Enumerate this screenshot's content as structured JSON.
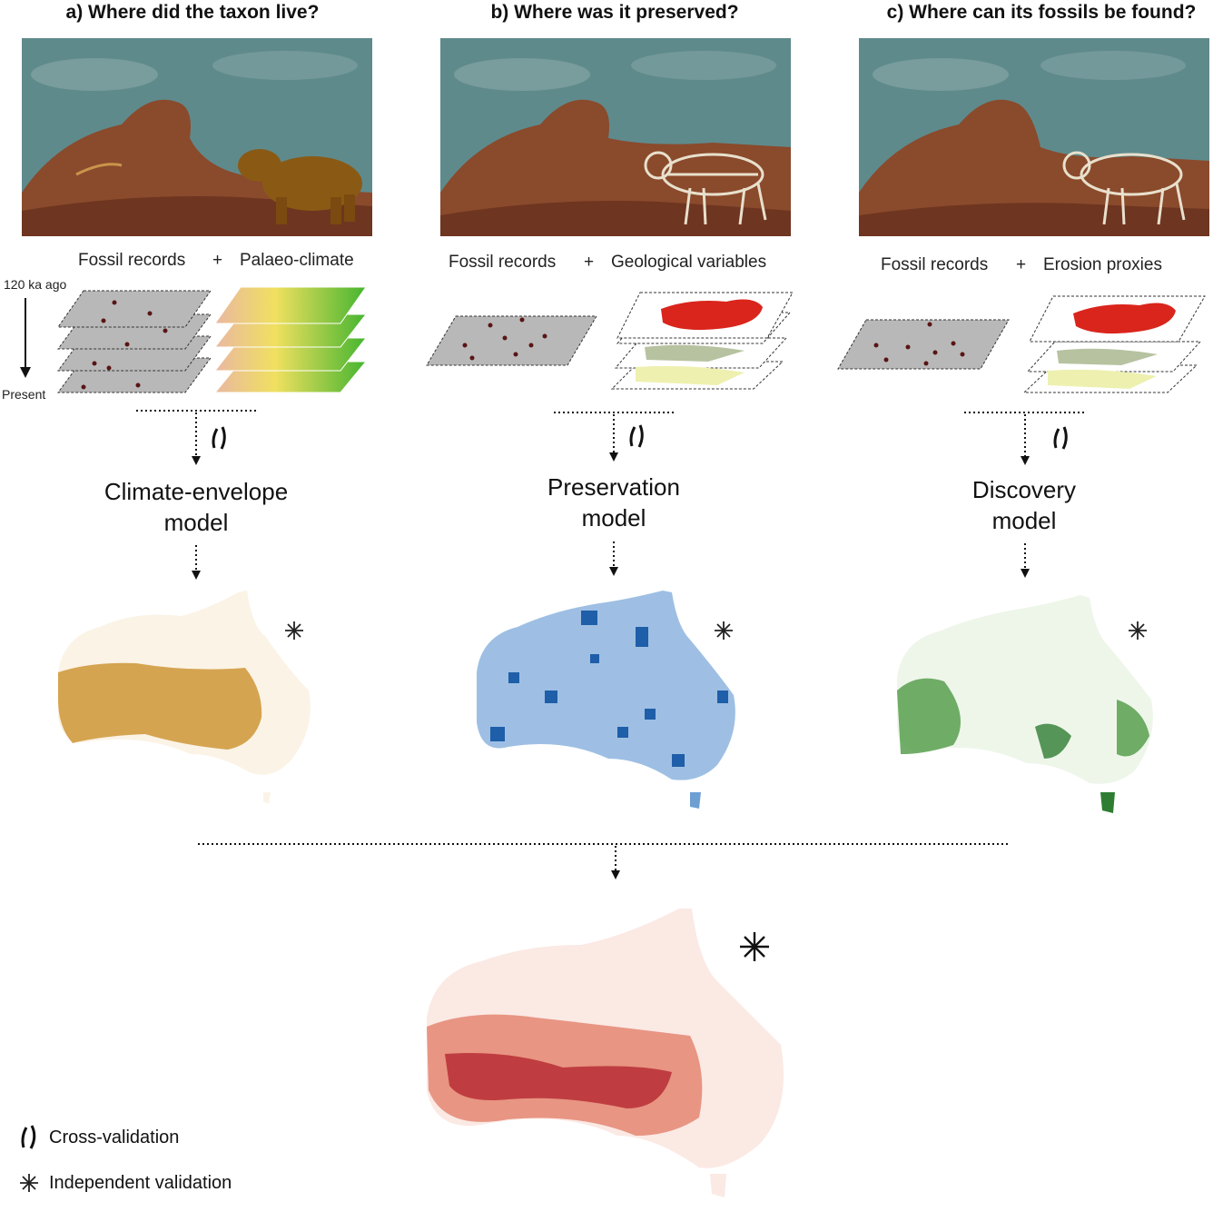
{
  "panels": [
    {
      "heading": "a) Where did the taxon live?",
      "input_left": "Fossil records",
      "plus": "+",
      "input_right": "Palaeo-climate",
      "model_line1": "Climate-envelope",
      "model_line2": "model",
      "map_color": "#c88a1f",
      "map_base": "#fbf3e6"
    },
    {
      "heading": "b) Where was it preserved?",
      "input_left": "Fossil records",
      "plus": "+",
      "input_right": "Geological variables",
      "model_line1": "Preservation",
      "model_line2": "model",
      "map_color": "#1f5ea8",
      "map_base": "#cfe0f2"
    },
    {
      "heading": "c) Where can its fossils be found?",
      "input_left": "Fossil records",
      "plus": "+",
      "input_right": "Erosion proxies",
      "model_line1": "Discovery",
      "model_line2": "model",
      "map_color": "#2e7d32",
      "map_base": "#eef6ea"
    }
  ],
  "time_axis": {
    "top": "120 ka ago",
    "bottom": "Present"
  },
  "final_map": {
    "color": "#b2202a",
    "base": "#fbe9e4"
  },
  "legend": [
    {
      "icon": "cross-validation-icon",
      "label": "Cross-validation"
    },
    {
      "icon": "independent-validation-icon",
      "label": "Independent validation"
    }
  ],
  "colors": {
    "sky": "#5f8a8c",
    "rock": "#8a4a2c",
    "ground": "#7a3d24",
    "fossil_plane": "#b8b8b8",
    "fossil_dot": "#5a1414"
  }
}
